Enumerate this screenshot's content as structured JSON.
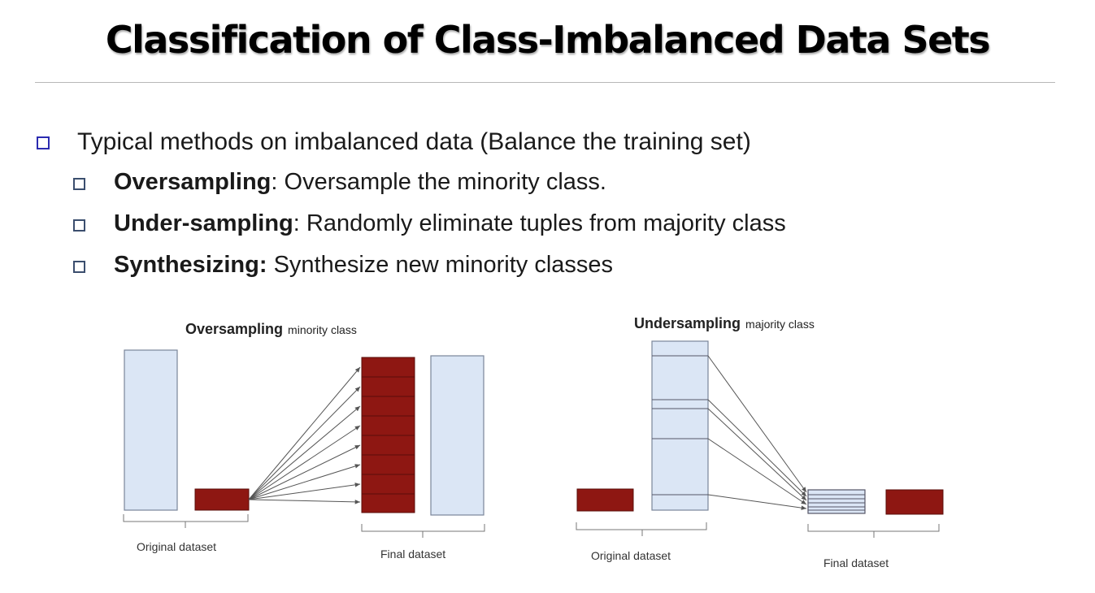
{
  "title": "Classification of Class-Imbalanced Data Sets",
  "bullets": {
    "main": "Typical methods on imbalanced data (Balance the training set)",
    "items": [
      {
        "term": "Oversampling",
        "sep": ": ",
        "desc": "Oversample the minority class."
      },
      {
        "term": "Under-sampling",
        "sep": ": ",
        "desc": "Randomly eliminate tuples from majority class"
      },
      {
        "term": "Synthesizing:",
        "sep": " ",
        "desc": "Synthesize new minority classes"
      }
    ]
  },
  "figures": {
    "oversampling": {
      "title_bold": "Oversampling",
      "title_rest": "minority class",
      "original_label": "Original dataset",
      "final_label": "Final dataset"
    },
    "undersampling": {
      "title_bold": "Undersampling",
      "title_rest": "majority class",
      "original_label": "Original dataset",
      "final_label": "Final dataset"
    }
  },
  "colors": {
    "majority_fill": "#dbe6f5",
    "majority_stroke": "#7a8699",
    "minority_fill": "#8e1712",
    "minority_stroke": "#5a0e0a",
    "bullet_box": "#2b2bb0"
  }
}
